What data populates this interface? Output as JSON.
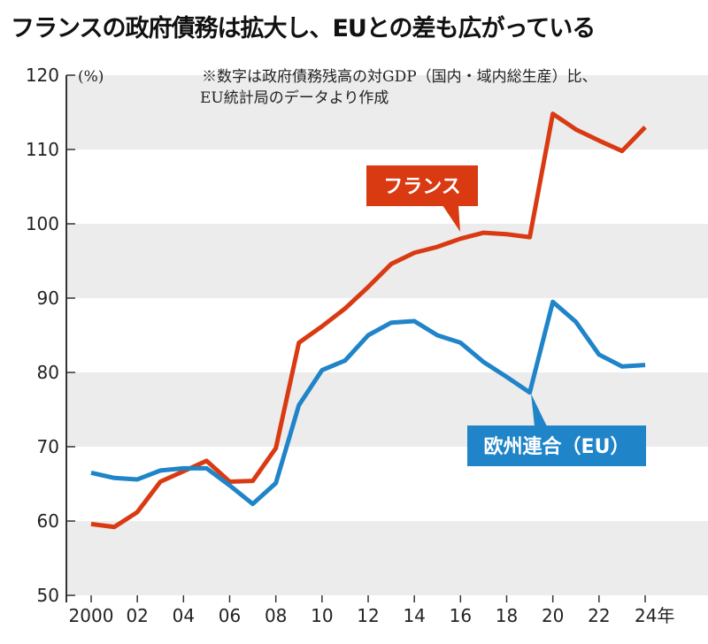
{
  "title": "フランスの政府債務は拡大し、EUとの差も広がっている",
  "chart_data": {
    "type": "line",
    "title": "フランスの政府債務は拡大し、EUとの差も広がっている",
    "ylabel": "(%)",
    "xlabel": "",
    "note": [
      "※数字は政府債務残高の対GDP（国内・域内総生産）比、",
      "EU統計局のデータより作成"
    ],
    "ylim": [
      50,
      120
    ],
    "yticks": [
      50,
      60,
      70,
      80,
      90,
      100,
      110,
      120
    ],
    "x": [
      2000,
      2001,
      2002,
      2003,
      2004,
      2005,
      2006,
      2007,
      2008,
      2009,
      2010,
      2011,
      2012,
      2013,
      2014,
      2015,
      2016,
      2017,
      2018,
      2019,
      2020,
      2021,
      2022,
      2023,
      2024
    ],
    "xticks": [
      {
        "year": 2000,
        "label": "2000"
      },
      {
        "year": 2002,
        "label": "02"
      },
      {
        "year": 2004,
        "label": "04"
      },
      {
        "year": 2006,
        "label": "06"
      },
      {
        "year": 2008,
        "label": "08"
      },
      {
        "year": 2010,
        "label": "10"
      },
      {
        "year": 2012,
        "label": "12"
      },
      {
        "year": 2014,
        "label": "14"
      },
      {
        "year": 2016,
        "label": "16"
      },
      {
        "year": 2018,
        "label": "18"
      },
      {
        "year": 2020,
        "label": "20"
      },
      {
        "year": 2022,
        "label": "22"
      },
      {
        "year": 2024,
        "label": "24年"
      }
    ],
    "grid": "alternating horizontal bands",
    "series": [
      {
        "name": "フランス",
        "color": "#d93a12",
        "values": [
          59.6,
          59.2,
          61.2,
          65.3,
          66.7,
          68.1,
          65.3,
          65.4,
          69.8,
          84.0,
          86.2,
          88.6,
          91.5,
          94.6,
          96.1,
          96.9,
          98.0,
          98.8,
          98.6,
          98.2,
          114.8,
          112.7,
          111.2,
          109.8,
          113.0
        ]
      },
      {
        "name": "欧州連合（EU）",
        "color": "#1f84c8",
        "values": [
          66.5,
          65.8,
          65.6,
          66.8,
          67.1,
          67.1,
          64.8,
          62.3,
          65.1,
          75.6,
          80.3,
          81.6,
          85.0,
          86.7,
          86.9,
          85.0,
          84.0,
          81.4,
          79.4,
          77.3,
          89.5,
          86.8,
          82.4,
          80.8,
          81.0
        ]
      }
    ]
  }
}
